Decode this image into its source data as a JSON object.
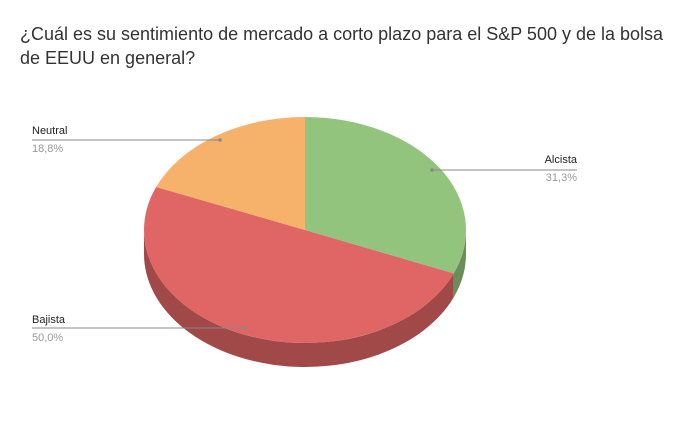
{
  "chart_data": {
    "type": "pie3d",
    "title": "¿Cuál es su sentimiento de mercado a corto plazo para el S&P 500 y de la bolsa de EEUU en general?",
    "categories": [
      "Alcista",
      "Bajista",
      "Neutral"
    ],
    "values": [
      31.3,
      50.0,
      18.8
    ],
    "value_labels": [
      "31,3%",
      "50,0%",
      "18,8%"
    ],
    "colors": [
      "#93c47d",
      "#e06666",
      "#f6b26b"
    ]
  }
}
